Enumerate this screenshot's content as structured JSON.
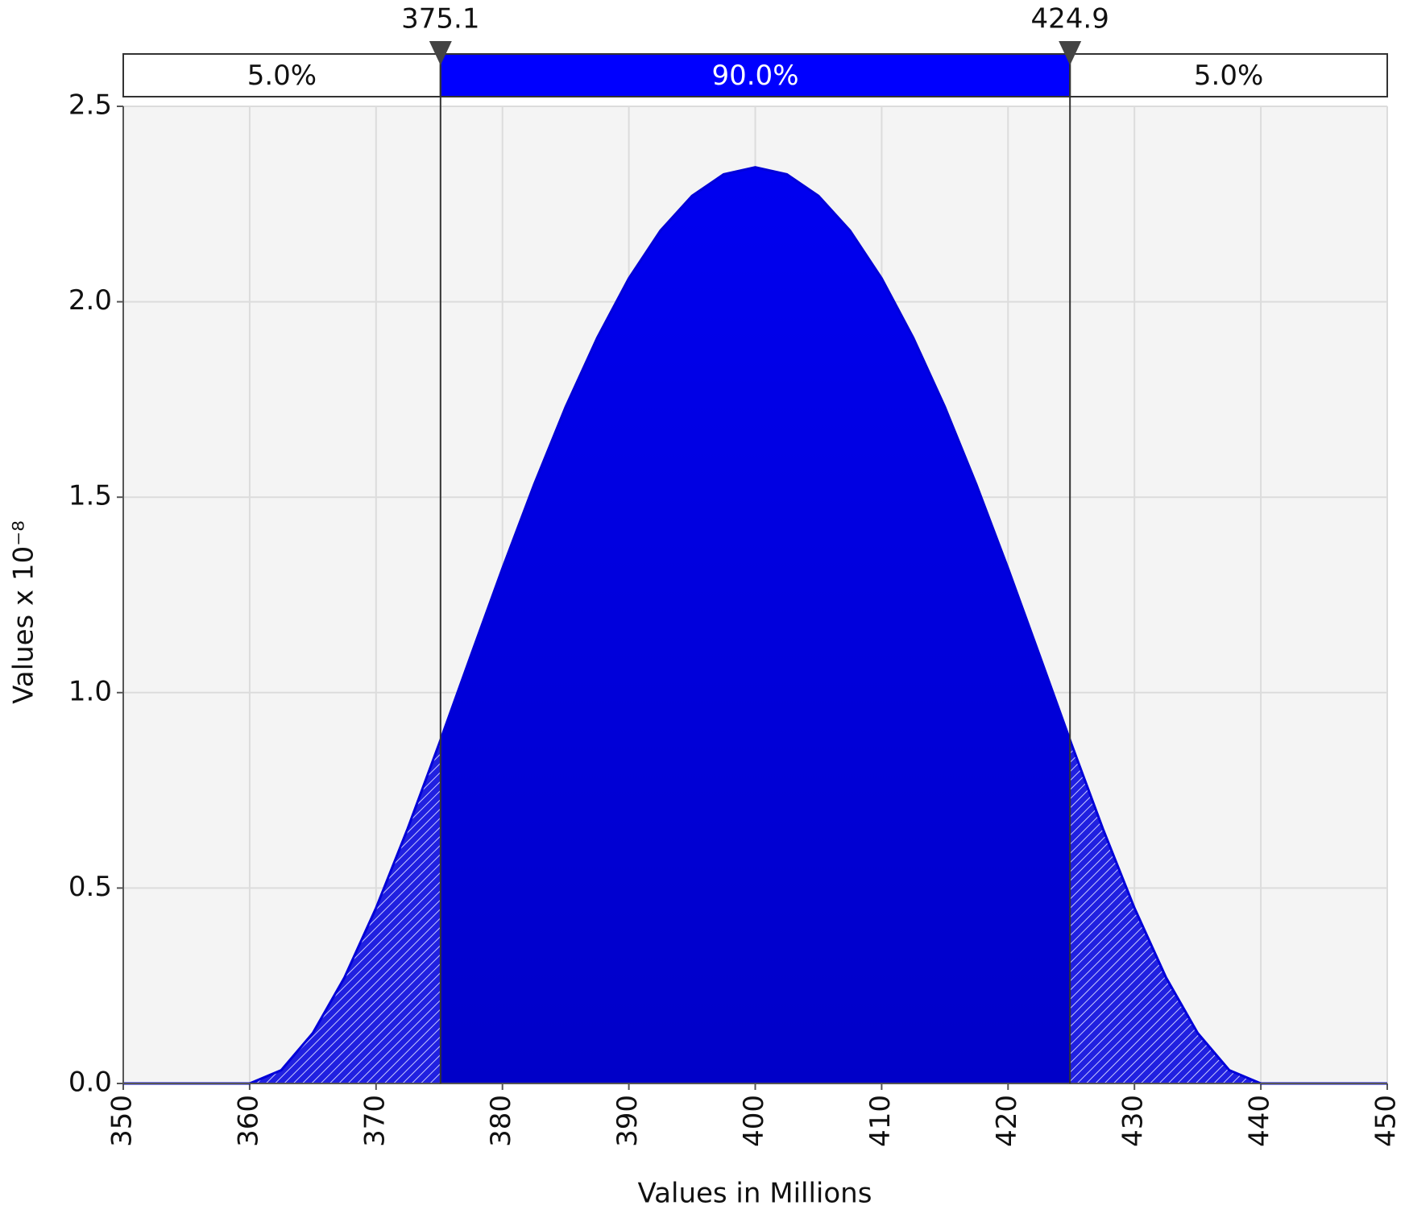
{
  "chart_data": {
    "type": "area",
    "x_label": "Values in Millions",
    "y_label": "Values x 10⁻⁸",
    "x": [
      350,
      360,
      362.5,
      365,
      367.5,
      370,
      372.5,
      375,
      377.5,
      380,
      382.5,
      385,
      387.5,
      390,
      392.5,
      395,
      397.5,
      400,
      402.5,
      405,
      407.5,
      410,
      412.5,
      415,
      417.5,
      420,
      422.5,
      425,
      427.5,
      430,
      432.5,
      435,
      437.5,
      440,
      450
    ],
    "values": [
      0,
      0,
      0.034,
      0.129,
      0.271,
      0.449,
      0.652,
      0.87,
      1.095,
      1.318,
      1.532,
      1.731,
      1.908,
      2.06,
      2.182,
      2.271,
      2.326,
      2.344,
      2.326,
      2.271,
      2.182,
      2.06,
      1.908,
      1.731,
      1.532,
      1.318,
      1.095,
      0.87,
      0.652,
      0.449,
      0.271,
      0.129,
      0.034,
      0,
      0
    ],
    "color": "#0000d8",
    "xlim": [
      350,
      450
    ],
    "xticks": [
      350,
      360,
      370,
      380,
      390,
      400,
      410,
      420,
      430,
      440,
      450
    ],
    "ylim": [
      0,
      2.5
    ],
    "yticks": [
      {
        "value": 0,
        "label": "0.0"
      },
      0.5,
      {
        "value": 1,
        "label": "1.0"
      },
      1.5,
      {
        "value": 2,
        "label": "2.0"
      },
      2.5
    ],
    "grid": true,
    "markers": [
      375.1,
      424.9
    ],
    "region_labels": [
      "5.0%",
      "90.0%",
      "5.0%"
    ]
  }
}
